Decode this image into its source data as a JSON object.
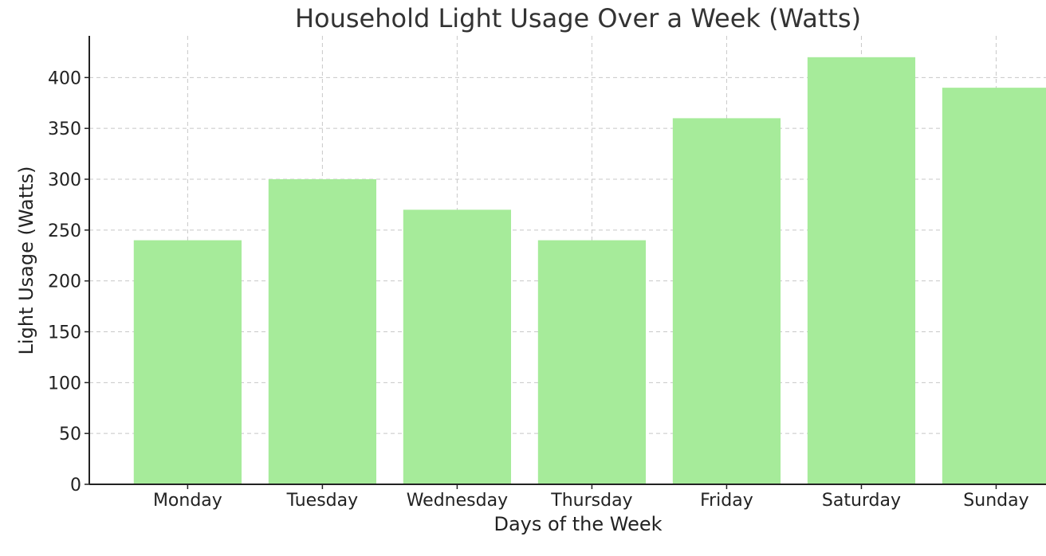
{
  "chart_data": {
    "type": "bar",
    "title": "Household Light Usage Over a Week (Watts)",
    "xlabel": "Days of the Week",
    "ylabel": "Light Usage (Watts)",
    "categories": [
      "Monday",
      "Tuesday",
      "Wednesday",
      "Thursday",
      "Friday",
      "Saturday",
      "Sunday"
    ],
    "values": [
      240,
      300,
      270,
      240,
      360,
      420,
      390
    ],
    "ylim": [
      0,
      441
    ],
    "yticks": [
      0,
      50,
      100,
      150,
      200,
      250,
      300,
      350,
      400
    ],
    "grid": true,
    "bar_color": "#a6eb9a"
  }
}
